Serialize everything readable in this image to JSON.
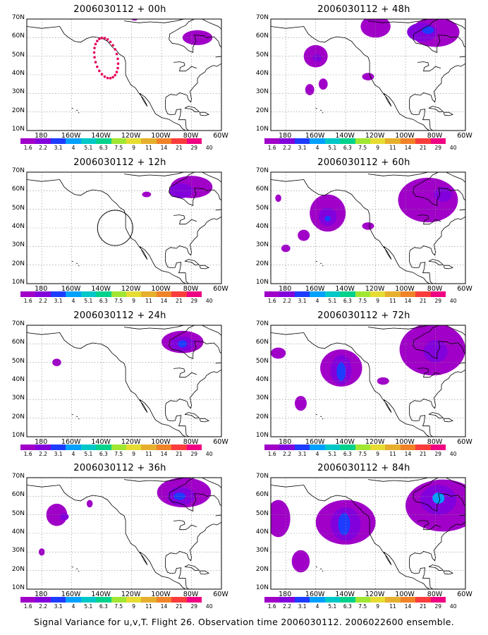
{
  "panels": [
    {
      "title": "2006030112 + 00h"
    },
    {
      "title": "2006030112 + 48h"
    },
    {
      "title": "2006030112 + 12h"
    },
    {
      "title": "2006030112 + 60h"
    },
    {
      "title": "2006030112 + 24h"
    },
    {
      "title": "2006030112 + 72h"
    },
    {
      "title": "2006030112 + 36h"
    },
    {
      "title": "2006030112 + 84h"
    }
  ],
  "lat_labels": [
    "70N",
    "60N",
    "50N",
    "40N",
    "30N",
    "20N",
    "10N"
  ],
  "lon_labels": [
    "180",
    "160W",
    "140W",
    "120W",
    "100W",
    "80W",
    "60W"
  ],
  "colorbar": {
    "labels": [
      "1.6",
      "2.2",
      "3.1",
      "4",
      "5.1",
      "6.3",
      "7.5",
      "9",
      "11",
      "14",
      "21",
      "29",
      "40"
    ],
    "colors": [
      "#a000c8",
      "#8200dc",
      "#1e3cff",
      "#00a0ff",
      "#00c8c8",
      "#00d28c",
      "#a0e632",
      "#e6dc32",
      "#e6af2d",
      "#f08228",
      "#fa3c3c",
      "#f00082"
    ]
  },
  "caption": "Signal Variance for u,v,T. Flight 26. Observation time 2006030112. 2006022600 ensemble."
}
